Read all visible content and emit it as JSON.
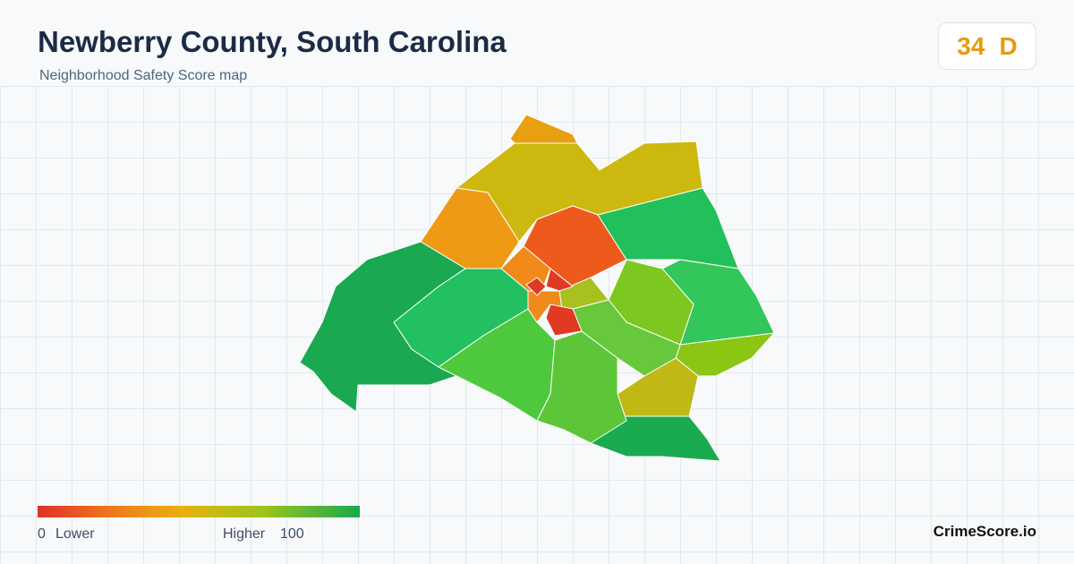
{
  "header": {
    "title": "Newberry County, South Carolina",
    "subtitle": "Neighborhood Safety Score map"
  },
  "score": {
    "value": 34,
    "grade": "D"
  },
  "legend": {
    "min": 0,
    "min_label": "Lower",
    "max_label": "Higher",
    "max": 100
  },
  "brand": "CrimeScore.io"
}
